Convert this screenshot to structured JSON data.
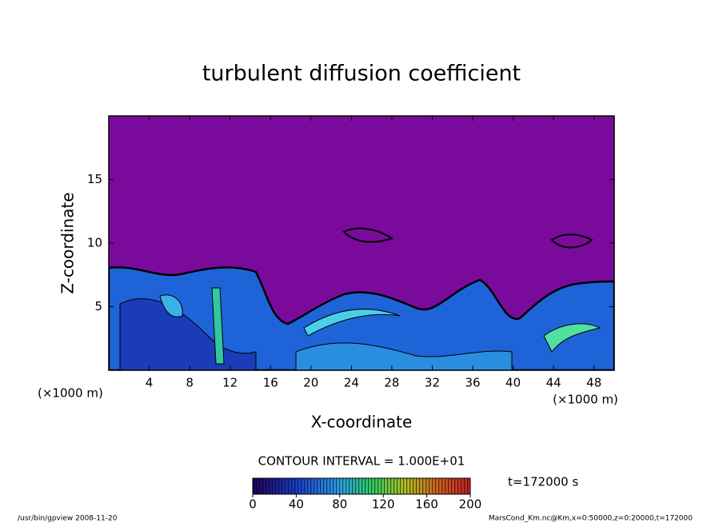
{
  "chart_data": {
    "type": "contour",
    "title": "turbulent diffusion coefficient",
    "xlabel": "X-coordinate",
    "ylabel": "Z-coordinate",
    "x_unit": "(×1000 m)",
    "xlim": [
      0,
      50
    ],
    "xticks": [
      4,
      8,
      12,
      16,
      20,
      24,
      28,
      32,
      36,
      40,
      44,
      48
    ],
    "ylim": [
      0,
      20
    ],
    "yticks": [
      5,
      10,
      15
    ],
    "contour_interval": "CONTOUR INTERVAL = 1.000E+01",
    "time_label": "t=172000 s",
    "colorbar": {
      "lim": [
        0,
        200
      ],
      "ticks": [
        0,
        40,
        80,
        120,
        160,
        200
      ]
    },
    "footer_left": "/usr/bin/gpview   2008-11-20",
    "footer_right": "MarsCond_Km.nc@Km,x=0:50000,z=0:20000,t=172000"
  }
}
